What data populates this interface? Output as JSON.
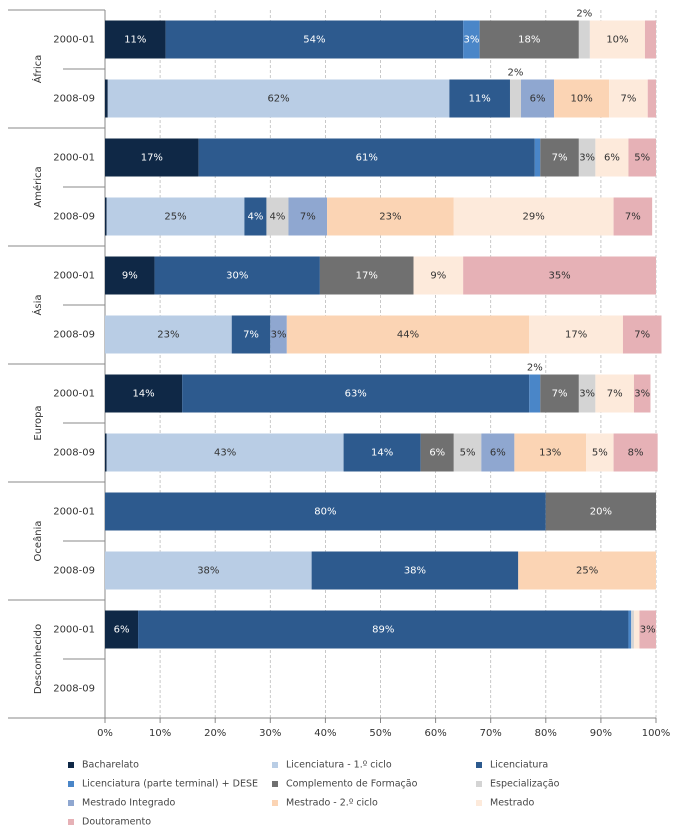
{
  "chart_data": {
    "type": "stacked-bar-horizontal",
    "groups": [
      "África",
      "América",
      "Ásia",
      "Europa",
      "Oceânia",
      "Desconhecido"
    ],
    "categories": [
      "2000-01",
      "2008-09",
      "2000-01",
      "2008-09",
      "2000-01",
      "2008-09",
      "2000-01",
      "2008-09",
      "2000-01",
      "2008-09",
      "2000-01",
      "2008-09"
    ],
    "xlim": [
      0,
      100
    ],
    "xticks": [
      {
        "value": 0,
        "label": "0%"
      },
      {
        "value": 10,
        "label": "10%"
      },
      {
        "value": 20,
        "label": "20%"
      },
      {
        "value": 30,
        "label": "30%"
      },
      {
        "value": 40,
        "label": "40%"
      },
      {
        "value": 50,
        "label": "50%"
      },
      {
        "value": 60,
        "label": "60%"
      },
      {
        "value": 70,
        "label": "70%"
      },
      {
        "value": 80,
        "label": "80%"
      },
      {
        "value": 90,
        "label": "90%"
      },
      {
        "value": 100,
        "label": "100%"
      }
    ],
    "grid": true,
    "series": [
      {
        "name": "Bacharelato",
        "color": "#0f2846",
        "values": [
          11,
          0.5,
          17,
          0.3,
          9,
          null,
          14,
          0.3,
          null,
          null,
          6,
          null
        ],
        "value_labels": [
          "11%",
          null,
          "17%",
          null,
          "9%",
          null,
          "14%",
          null,
          null,
          null,
          "6%",
          null
        ]
      },
      {
        "name": "Licenciatura - 1.º ciclo",
        "color": "#b9cde5",
        "values": [
          null,
          62,
          null,
          25,
          null,
          23,
          null,
          43,
          null,
          37.5,
          null,
          null
        ],
        "value_labels": [
          null,
          "62%",
          null,
          "25%",
          null,
          "23%",
          null,
          "43%",
          null,
          "38%",
          null,
          null
        ]
      },
      {
        "name": "Licenciatura",
        "color": "#2d5a8e",
        "values": [
          54,
          11,
          61,
          4,
          30,
          7,
          63,
          14,
          80,
          37.5,
          89,
          null
        ],
        "value_labels": [
          "54%",
          "11%",
          "61%",
          "4%",
          "30%",
          "7%",
          "63%",
          "14%",
          "80%",
          "38%",
          "89%",
          null
        ]
      },
      {
        "name": "Licenciatura (parte terminal) + DESE",
        "color": "#4a86c8",
        "values": [
          3,
          null,
          1,
          null,
          null,
          null,
          2,
          null,
          null,
          null,
          0.5,
          null
        ],
        "value_labels": [
          "3%",
          null,
          null,
          null,
          null,
          null,
          "2%",
          null,
          null,
          null,
          null,
          null
        ]
      },
      {
        "name": "Complemento de Formação",
        "color": "#707070",
        "values": [
          18,
          null,
          7,
          null,
          17,
          null,
          7,
          6,
          20,
          null,
          null,
          null
        ],
        "value_labels": [
          "18%",
          null,
          "7%",
          null,
          "17%",
          null,
          "7%",
          "6%",
          "20%",
          null,
          null,
          null
        ]
      },
      {
        "name": "Especialização",
        "color": "#d4d4d4",
        "values": [
          2,
          2,
          3,
          4,
          null,
          null,
          3,
          5,
          null,
          null,
          0.5,
          null
        ],
        "value_labels": [
          "2%",
          "2%",
          "3%",
          "4%",
          null,
          null,
          "3%",
          "5%",
          null,
          null,
          null,
          null
        ]
      },
      {
        "name": "Mestrado Integrado",
        "color": "#8fa7d0",
        "values": [
          null,
          6,
          null,
          7,
          null,
          3,
          null,
          6,
          null,
          null,
          null,
          null
        ],
        "value_labels": [
          null,
          "6%",
          null,
          "7%",
          null,
          "3%",
          null,
          "6%",
          null,
          null,
          null,
          null
        ]
      },
      {
        "name": "Mestrado - 2.º ciclo",
        "color": "#fbd4b4",
        "values": [
          null,
          10,
          null,
          23,
          null,
          44,
          null,
          13,
          null,
          25,
          null,
          null
        ],
        "value_labels": [
          null,
          "10%",
          null,
          "23%",
          null,
          "44%",
          null,
          "13%",
          null,
          "25%",
          null,
          null
        ]
      },
      {
        "name": "Mestrado",
        "color": "#fdeadb",
        "values": [
          10,
          7,
          6,
          29,
          9,
          17,
          7,
          5,
          null,
          null,
          1,
          null
        ],
        "value_labels": [
          "10%",
          "7%",
          "6%",
          "29%",
          "9%",
          "17%",
          "7%",
          "5%",
          null,
          null,
          null,
          null
        ]
      },
      {
        "name": "Doutoramento",
        "color": "#e6b1b6",
        "values": [
          2,
          1.5,
          5,
          7,
          35,
          7,
          3,
          8,
          null,
          null,
          3,
          null
        ],
        "value_labels": [
          null,
          null,
          "5%",
          "7%",
          "35%",
          "7%",
          "3%",
          "8%",
          null,
          null,
          "3%",
          null
        ]
      }
    ]
  }
}
